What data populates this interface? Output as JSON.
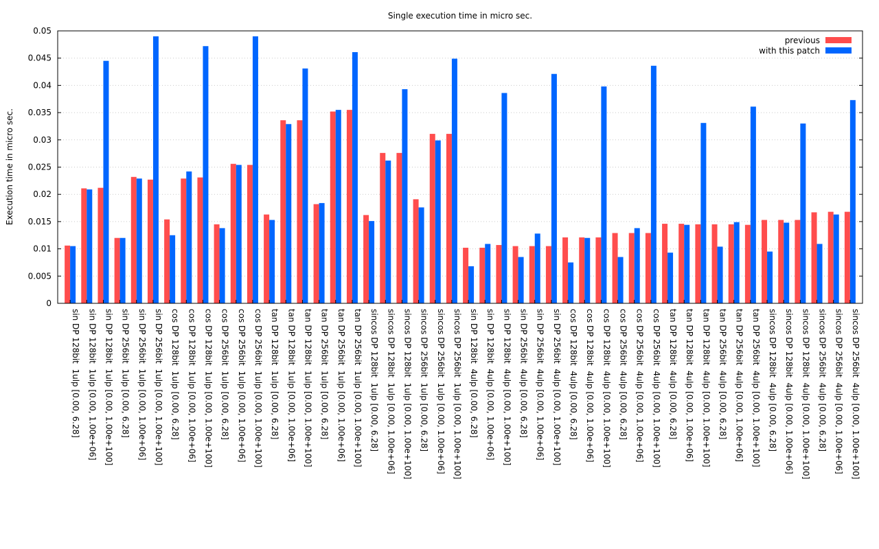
{
  "chart_data": {
    "type": "bar",
    "title": "Single execution time in micro sec.",
    "ylabel": "Execution time in micro sec.",
    "xlabel": "",
    "ylim": [
      0,
      0.05
    ],
    "yticks": [
      "0",
      "0.005",
      "0.01",
      "0.015",
      "0.02",
      "0.025",
      "0.03",
      "0.035",
      "0.04",
      "0.045",
      "0.05"
    ],
    "grid": "horizontal dotted",
    "legend_position": "top-right",
    "categories": [
      "sin DP 128bit  1ulp [0.00, 6.28]",
      "sin DP 128bit  1ulp [0.00, 1.00e+06]",
      "sin DP 128bit  1ulp [0.00, 1.00e+100]",
      "sin DP 256bit  1ulp [0.00, 6.28]",
      "sin DP 256bit  1ulp [0.00, 1.00e+06]",
      "sin DP 256bit  1ulp [0.00, 1.00e+100]",
      "cos DP 128bit  1ulp [0.00, 6.28]",
      "cos DP 128bit  1ulp [0.00, 1.00e+06]",
      "cos DP 128bit  1ulp [0.00, 1.00e+100]",
      "cos DP 256bit  1ulp [0.00, 6.28]",
      "cos DP 256bit  1ulp [0.00, 1.00e+06]",
      "cos DP 256bit  1ulp [0.00, 1.00e+100]",
      "tan DP 128bit  1ulp [0.00, 6.28]",
      "tan DP 128bit  1ulp [0.00, 1.00e+06]",
      "tan DP 128bit  1ulp [0.00, 1.00e+100]",
      "tan DP 256bit  1ulp [0.00, 6.28]",
      "tan DP 256bit  1ulp [0.00, 1.00e+06]",
      "tan DP 256bit  1ulp [0.00, 1.00e+100]",
      "sincos DP 128bit  1ulp [0.00, 6.28]",
      "sincos DP 128bit  1ulp [0.00, 1.00e+06]",
      "sincos DP 128bit  1ulp [0.00, 1.00e+100]",
      "sincos DP 256bit  1ulp [0.00, 6.28]",
      "sincos DP 256bit  1ulp [0.00, 1.00e+06]",
      "sincos DP 256bit  1ulp [0.00, 1.00e+100]",
      "sin DP 128bit  4ulp [0.00, 6.28]",
      "sin DP 128bit  4ulp [0.00, 1.00e+06]",
      "sin DP 128bit  4ulp [0.00, 1.00e+100]",
      "sin DP 256bit  4ulp [0.00, 6.28]",
      "sin DP 256bit  4ulp [0.00, 1.00e+06]",
      "sin DP 256bit  4ulp [0.00, 1.00e+100]",
      "cos DP 128bit  4ulp [0.00, 6.28]",
      "cos DP 128bit  4ulp [0.00, 1.00e+06]",
      "cos DP 128bit  4ulp [0.00, 1.00e+100]",
      "cos DP 256bit  4ulp [0.00, 6.28]",
      "cos DP 256bit  4ulp [0.00, 1.00e+06]",
      "cos DP 256bit  4ulp [0.00, 1.00e+100]",
      "tan DP 128bit  4ulp [0.00, 6.28]",
      "tan DP 128bit  4ulp [0.00, 1.00e+06]",
      "tan DP 128bit  4ulp [0.00, 1.00e+100]",
      "tan DP 256bit  4ulp [0.00, 6.28]",
      "tan DP 256bit  4ulp [0.00, 1.00e+06]",
      "tan DP 256bit  4ulp [0.00, 1.00e+100]",
      "sincos DP 128bit  4ulp [0.00, 6.28]",
      "sincos DP 128bit  4ulp [0.00, 1.00e+06]",
      "sincos DP 128bit  4ulp [0.00, 1.00e+100]",
      "sincos DP 256bit  4ulp [0.00, 6.28]",
      "sincos DP 256bit  4ulp [0.00, 1.00e+06]",
      "sincos DP 256bit  4ulp [0.00, 1.00e+100]"
    ],
    "series": [
      {
        "name": "previous",
        "color": "#ff4d4d",
        "values": [
          0.0106,
          0.0211,
          0.0212,
          0.012,
          0.0232,
          0.0227,
          0.0154,
          0.0229,
          0.0231,
          0.0145,
          0.0256,
          0.0254,
          0.0163,
          0.0336,
          0.0336,
          0.0182,
          0.0352,
          0.0355,
          0.0162,
          0.0276,
          0.0276,
          0.0191,
          0.0311,
          0.0311,
          0.0102,
          0.0102,
          0.0107,
          0.0105,
          0.0105,
          0.0105,
          0.0121,
          0.0121,
          0.0121,
          0.0129,
          0.0129,
          0.0129,
          0.0146,
          0.0146,
          0.0145,
          0.0145,
          0.0145,
          0.0144,
          0.0153,
          0.0153,
          0.0153,
          0.0167,
          0.0168,
          0.0168
        ]
      },
      {
        "name": "with this patch",
        "color": "#0066ff",
        "values": [
          0.0105,
          0.0209,
          0.0445,
          0.012,
          0.0229,
          0.049,
          0.0125,
          0.0242,
          0.0472,
          0.0138,
          0.0254,
          0.049,
          0.0153,
          0.0329,
          0.0431,
          0.0184,
          0.0355,
          0.0461,
          0.0151,
          0.0262,
          0.0393,
          0.0176,
          0.0299,
          0.0449,
          0.0068,
          0.0109,
          0.0386,
          0.0085,
          0.0128,
          0.0421,
          0.0075,
          0.012,
          0.0398,
          0.0085,
          0.0138,
          0.0436,
          0.0093,
          0.0144,
          0.0331,
          0.0104,
          0.0149,
          0.0361,
          0.0095,
          0.0148,
          0.033,
          0.0109,
          0.0163,
          0.0373
        ]
      }
    ]
  }
}
